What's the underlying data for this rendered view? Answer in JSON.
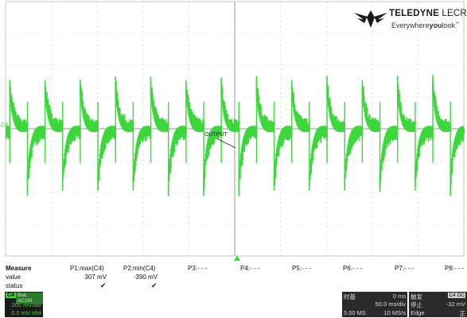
{
  "logo": {
    "brand_bold": "TELEDYNE",
    "brand_light": "LECROY",
    "tag_pre": "Everywhere",
    "tag_bold": "you",
    "tag_post": "look",
    "tm": "™"
  },
  "trace": {
    "channel_marker": "C4",
    "callout": "OUTPUT",
    "color": "#3dd63d",
    "pulse_count": 13,
    "approx_max_mV": 307,
    "approx_min_mV": -390
  },
  "measure": {
    "header": "Measure",
    "row_labels": {
      "value": "value",
      "status": "status"
    },
    "params": [
      {
        "label": "P1:max(C4)",
        "value": "307 mV",
        "status": "✔"
      },
      {
        "label": "P2:min(C4)",
        "value": "-390 mV",
        "status": "✔"
      },
      {
        "label": "P3:- - -",
        "value": "",
        "status": ""
      },
      {
        "label": "P4:- - -",
        "value": "",
        "status": ""
      },
      {
        "label": "P5:- - -",
        "value": "",
        "status": ""
      },
      {
        "label": "P6:- - -",
        "value": "",
        "status": ""
      },
      {
        "label": "P7:- - -",
        "value": "",
        "status": ""
      },
      {
        "label": "P8:- - -",
        "value": "",
        "status": ""
      }
    ]
  },
  "channel_box": {
    "tag": "C4",
    "mode": "BwL AC1M",
    "scale": "200 mV/div",
    "offset": "0.0 mV ofst"
  },
  "timebase_box": {
    "title": "时基",
    "delay": "0 ms",
    "time_per_div": "50.0 ms/div",
    "samples": "5.00 MS",
    "rate": "10 MS/s"
  },
  "trigger_box": {
    "title": "触发",
    "channel": "C4 DC",
    "mode": "停止",
    "level": "-32 mV",
    "type": "Edge",
    "slope": "正"
  }
}
